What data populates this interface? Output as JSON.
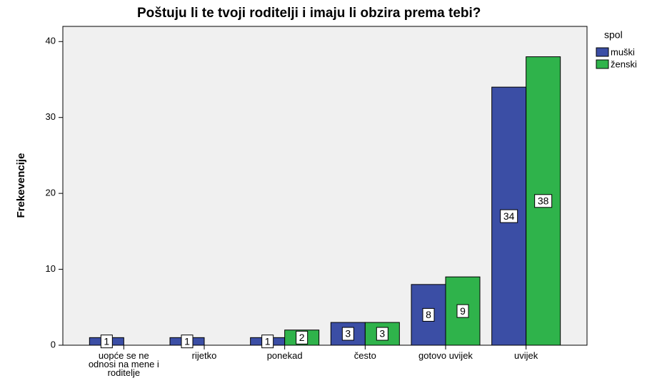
{
  "chart_data": {
    "type": "bar",
    "title": "Poštuju li te tvoji roditelji i imaju li obzira prema tebi?",
    "y_label": "Frekevencije",
    "legend_title": "spol",
    "legend": "right",
    "categories": [
      "uopće se ne odnosi na mene i roditelje",
      "rijetko",
      "ponekad",
      "često",
      "gotovo uvijek",
      "uvijek"
    ],
    "series": [
      {
        "name": "muški",
        "color": "#3b4ea5",
        "values": [
          1,
          1,
          1,
          3,
          8,
          34
        ]
      },
      {
        "name": "ženski",
        "color": "#2fb34b",
        "values": [
          null,
          null,
          2,
          3,
          9,
          38
        ]
      }
    ],
    "ylim": [
      0,
      42
    ],
    "yticks": [
      0,
      10,
      20,
      30,
      40
    ],
    "grid": false
  }
}
